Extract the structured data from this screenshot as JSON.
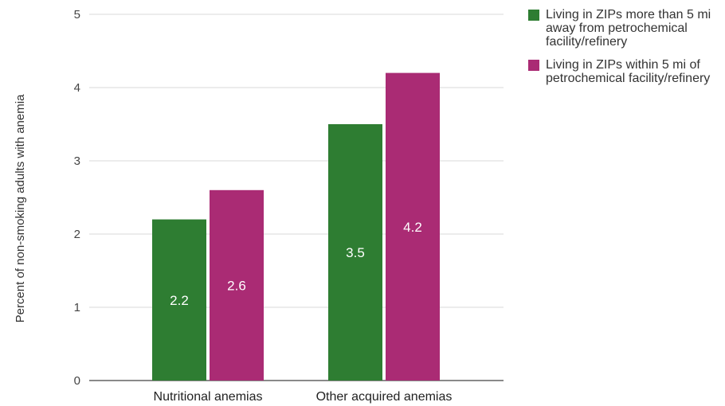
{
  "chart_data": {
    "type": "bar",
    "title": "",
    "xlabel": "",
    "ylabel": "Percent of non-smoking adults with anemia",
    "categories": [
      "Nutritional anemias",
      "Other acquired anemias"
    ],
    "series": [
      {
        "name": "Living in ZIPs more than 5 mi away from petrochemical facility/refinery",
        "color": "#2e7d32",
        "values": [
          2.2,
          3.5
        ]
      },
      {
        "name": "Living in ZIPs within 5 mi of petrochemical facility/refinery",
        "color": "#aa2b74",
        "values": [
          2.6,
          4.2
        ]
      }
    ],
    "data_labels": [
      [
        "2.2",
        "3.5"
      ],
      [
        "2.6",
        "4.2"
      ]
    ],
    "ylim": [
      0,
      5
    ],
    "yticks": [
      0,
      1,
      2,
      3,
      4,
      5
    ],
    "grid": true,
    "legend_position": "top-right"
  }
}
